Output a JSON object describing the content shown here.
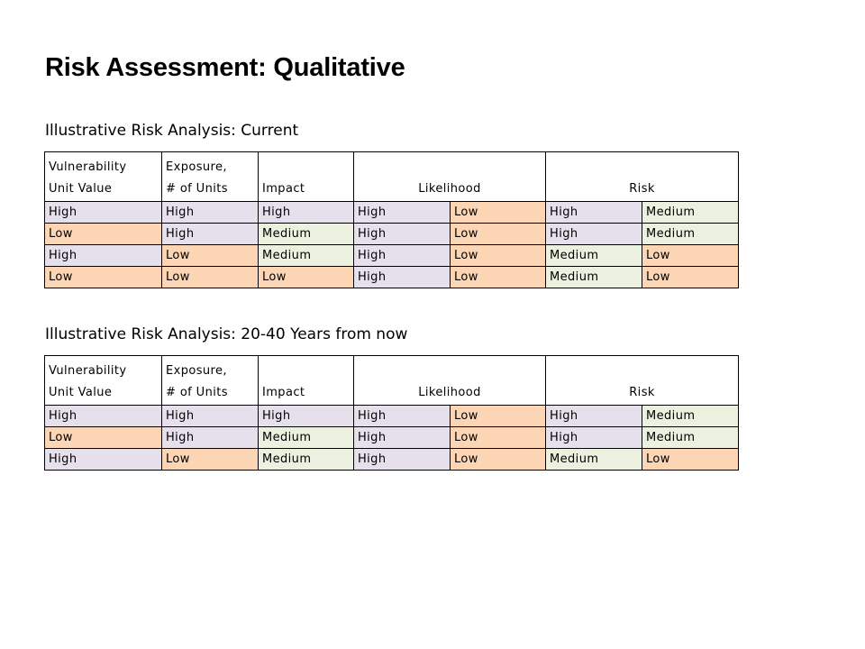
{
  "page": {
    "title": "Risk Assessment: Qualitative"
  },
  "level_colors": {
    "High": "#e6e0ec",
    "Low": "#fcd5b4",
    "Medium": "#ebf1de"
  },
  "tables": [
    {
      "title": "Illustrative Risk Analysis: Current",
      "headers": {
        "vulnerability_line1": "Vulnerability",
        "vulnerability_line2": "Unit Value",
        "exposure_line1": "Exposure,",
        "exposure_line2": "# of Units",
        "impact": "Impact",
        "likelihood": "Likelihood",
        "risk": "Risk"
      },
      "rows": [
        [
          "High",
          "High",
          "High",
          "High",
          "Low",
          "High",
          "Medium"
        ],
        [
          "Low",
          "High",
          "Medium",
          "High",
          "Low",
          "High",
          "Medium"
        ],
        [
          "High",
          "Low",
          "Medium",
          "High",
          "Low",
          "Medium",
          "Low"
        ],
        [
          "Low",
          "Low",
          "Low",
          "High",
          "Low",
          "Medium",
          "Low"
        ]
      ]
    },
    {
      "title": "Illustrative Risk Analysis: 20-40 Years from now",
      "headers": {
        "vulnerability_line1": "Vulnerability",
        "vulnerability_line2": "Unit Value",
        "exposure_line1": "Exposure,",
        "exposure_line2": "# of Units",
        "impact": "Impact",
        "likelihood": "Likelihood",
        "risk": "Risk"
      },
      "rows": [
        [
          "High",
          "High",
          "High",
          "High",
          "Low",
          "High",
          "Medium"
        ],
        [
          "Low",
          "High",
          "Medium",
          "High",
          "Low",
          "High",
          "Medium"
        ],
        [
          "High",
          "Low",
          "Medium",
          "High",
          "Low",
          "Medium",
          "Low"
        ]
      ]
    }
  ]
}
